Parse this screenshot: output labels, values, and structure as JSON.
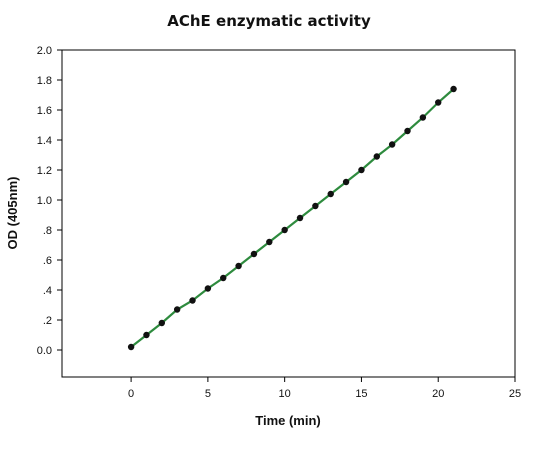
{
  "chart_data": {
    "type": "scatter",
    "title": "AChE enzymatic activity",
    "xlabel": "Time (min)",
    "ylabel": "OD (405nm)",
    "xlim": [
      -4.5,
      25
    ],
    "ylim": [
      -0.18,
      2.0
    ],
    "x_ticks": [
      0,
      5,
      10,
      15,
      20,
      25
    ],
    "x_tick_labels": [
      "0",
      "5",
      "10",
      "15",
      "20",
      "25"
    ],
    "y_ticks": [
      0.0,
      0.2,
      0.4,
      0.6,
      0.8,
      1.0,
      1.2,
      1.4,
      1.6,
      1.8,
      2.0
    ],
    "y_tick_labels": [
      "0.0",
      ".2",
      ".4",
      ".6",
      ".8",
      "1.0",
      "1.2",
      "1.4",
      "1.6",
      "1.8",
      "2.0"
    ],
    "grid": false,
    "legend": "none",
    "series": [
      {
        "marker_color": "#111111",
        "line_color": "#2e8b3e",
        "x": [
          0,
          1,
          2,
          3,
          4,
          5,
          6,
          7,
          8,
          9,
          10,
          11,
          12,
          13,
          14,
          15,
          16,
          17,
          18,
          19,
          20,
          21
        ],
        "y": [
          0.02,
          0.1,
          0.18,
          0.27,
          0.33,
          0.41,
          0.48,
          0.56,
          0.64,
          0.72,
          0.8,
          0.88,
          0.96,
          1.04,
          1.12,
          1.2,
          1.29,
          1.37,
          1.46,
          1.55,
          1.65,
          1.74
        ]
      }
    ]
  }
}
